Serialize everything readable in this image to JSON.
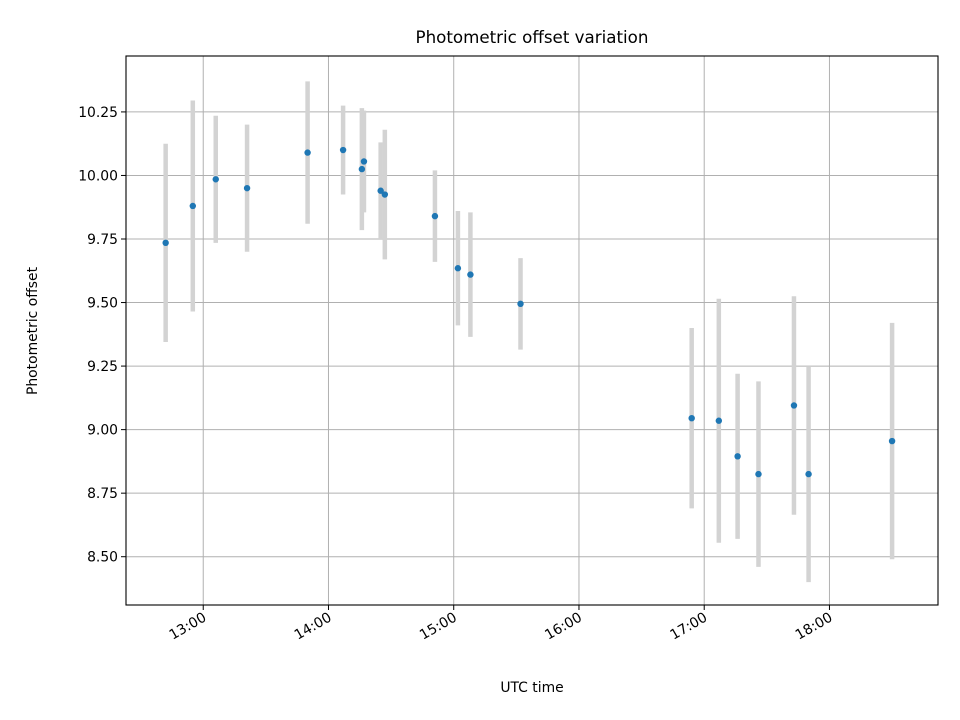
{
  "chart_data": {
    "type": "scatter",
    "title": "Photometric offset variation",
    "xlabel": "UTC time",
    "ylabel": "Photometric offset",
    "x_ticks": [
      "13:00",
      "14:00",
      "15:00",
      "16:00",
      "17:00",
      "18:00"
    ],
    "y_ticks": [
      "8.50",
      "8.75",
      "9.00",
      "9.25",
      "9.50",
      "9.75",
      "10.00",
      "10.25"
    ],
    "xlim": [
      "12:23",
      "18:52"
    ],
    "ylim": [
      8.31,
      10.47
    ],
    "grid": true,
    "point_color": "#1f77b4",
    "errorbar_color": "#d3d3d3",
    "points": [
      {
        "t": "12:42",
        "y": 9.735,
        "err": 0.39
      },
      {
        "t": "12:55",
        "y": 9.88,
        "err": 0.415
      },
      {
        "t": "13:06",
        "y": 9.985,
        "err": 0.25
      },
      {
        "t": "13:21",
        "y": 9.95,
        "err": 0.25
      },
      {
        "t": "13:50",
        "y": 10.09,
        "err": 0.28
      },
      {
        "t": "14:07",
        "y": 10.1,
        "err": 0.175
      },
      {
        "t": "14:16",
        "y": 10.025,
        "err": 0.24
      },
      {
        "t": "14:17",
        "y": 10.055,
        "err": 0.2
      },
      {
        "t": "14:25",
        "y": 9.94,
        "err": 0.19
      },
      {
        "t": "14:27",
        "y": 9.925,
        "err": 0.255
      },
      {
        "t": "14:51",
        "y": 9.84,
        "err": 0.18
      },
      {
        "t": "15:02",
        "y": 9.635,
        "err": 0.225
      },
      {
        "t": "15:08",
        "y": 9.61,
        "err": 0.245
      },
      {
        "t": "15:32",
        "y": 9.495,
        "err": 0.18
      },
      {
        "t": "16:54",
        "y": 9.045,
        "err": 0.355
      },
      {
        "t": "17:07",
        "y": 9.035,
        "err": 0.48
      },
      {
        "t": "17:16",
        "y": 8.895,
        "err": 0.325
      },
      {
        "t": "17:26",
        "y": 8.825,
        "err": 0.365
      },
      {
        "t": "17:43",
        "y": 9.095,
        "err": 0.43
      },
      {
        "t": "17:50",
        "y": 8.825,
        "err": 0.425
      },
      {
        "t": "18:30",
        "y": 8.955,
        "err": 0.465
      }
    ]
  }
}
